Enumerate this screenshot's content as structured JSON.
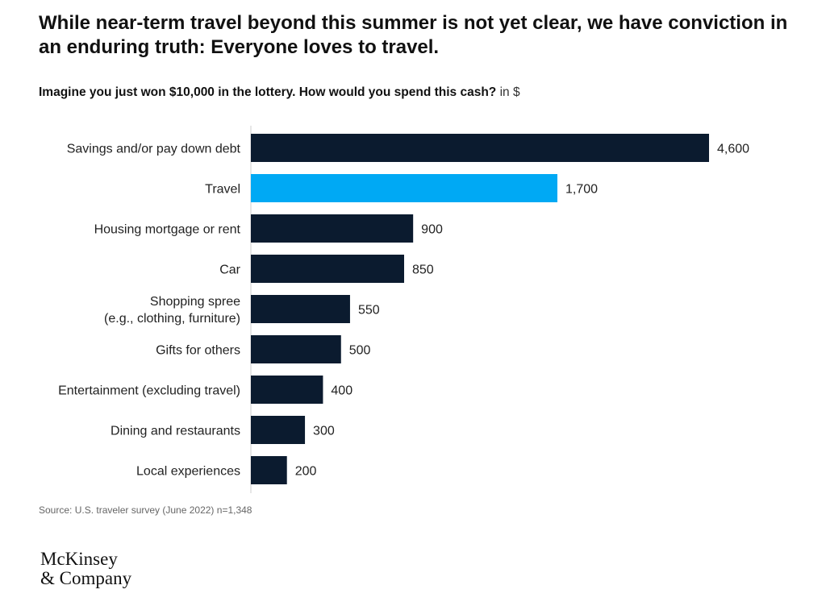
{
  "header": {
    "title": "While near-term travel beyond this summer is not yet clear, we have conviction in an enduring truth: Everyone loves to travel.",
    "question": "Imagine you just won $10,000 in the lottery. How would you spend this cash?",
    "unit": "in $"
  },
  "chart_data": {
    "type": "bar",
    "orientation": "horizontal",
    "categories": [
      [
        "Savings and/or pay down debt"
      ],
      [
        "Travel"
      ],
      [
        "Housing mortgage or rent"
      ],
      [
        "Car"
      ],
      [
        "Shopping spree",
        "(e.g., clothing, furniture)"
      ],
      [
        "Gifts for others"
      ],
      [
        "Entertainment (excluding travel)"
      ],
      [
        "Dining and restaurants"
      ],
      [
        "Local experiences"
      ]
    ],
    "values": [
      4600,
      1700,
      900,
      850,
      550,
      500,
      400,
      300,
      200
    ],
    "value_labels": [
      "4,600",
      "1,700",
      "900",
      "850",
      "550",
      "500",
      "400",
      "300",
      "200"
    ],
    "highlight_index": 1,
    "colors": {
      "default": "#0b1b2f",
      "highlight": "#00a9f4",
      "axis": "#cccccc"
    },
    "axis_break": true
  },
  "footer": {
    "source": "Source: U.S. traveler survey (June 2022) n=1,348",
    "logo_line1": "McKinsey",
    "logo_line2": "& Company"
  }
}
